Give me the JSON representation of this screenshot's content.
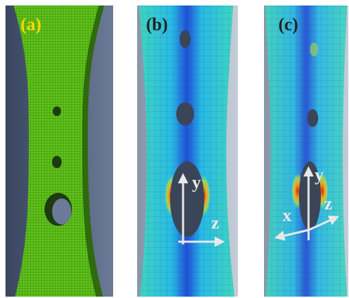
{
  "panels": [
    {
      "label": "(a)"
    },
    {
      "label": "(b)",
      "axes": [
        "y",
        "z"
      ]
    },
    {
      "label": "(c)",
      "axes": [
        "y",
        "z",
        "x"
      ]
    }
  ]
}
